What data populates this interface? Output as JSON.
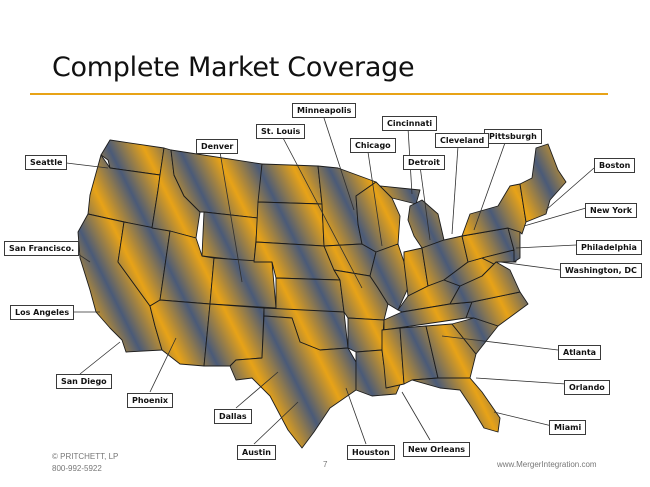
{
  "slide": {
    "title": "Complete Market Coverage",
    "page_number": "7",
    "copyright": "© PRITCHETT, LP",
    "phone": "800-992-5922",
    "website": "www.MergerIntegration.com"
  },
  "colors": {
    "accent": "#e8a317",
    "state_dark": "#4a5a78",
    "state_light": "#e8a317"
  },
  "cities": [
    "Seattle",
    "San Francisco.",
    "Los Angeles",
    "San Diego",
    "Phoenix",
    "Dallas",
    "Austin",
    "Houston",
    "New Orleans",
    "Miami",
    "Orlando",
    "Atlanta",
    "Washington, DC",
    "Philadelphia",
    "New York",
    "Boston",
    "Pittsburgh",
    "Cleveland",
    "Detroit",
    "Cincinnati",
    "Chicago",
    "Minneapolis",
    "St. Louis",
    "Denver"
  ]
}
